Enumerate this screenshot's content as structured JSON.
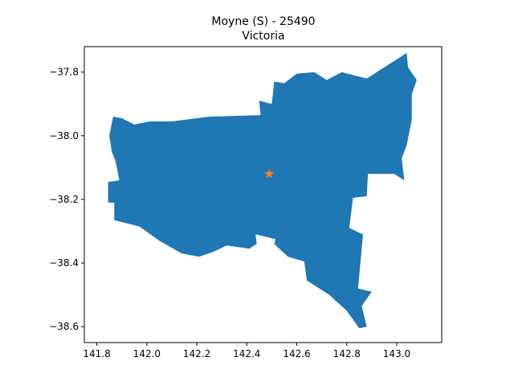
{
  "title": {
    "line1": "Moyne (S) - 25490",
    "line2": "Victoria"
  },
  "chart_data": {
    "type": "map",
    "title": "Moyne (S) - 25490\nVictoria",
    "xlabel": "",
    "ylabel": "",
    "xlim": [
      141.75,
      143.18
    ],
    "ylim": [
      -38.65,
      -37.72
    ],
    "grid": false,
    "x_ticks": [
      141.8,
      142.0,
      142.2,
      142.4,
      142.6,
      142.8,
      143.0
    ],
    "x_tick_labels": [
      "141.8",
      "142.0",
      "142.2",
      "142.4",
      "142.6",
      "142.8",
      "143.0"
    ],
    "y_ticks": [
      -37.8,
      -38.0,
      -38.2,
      -38.4,
      -38.6
    ],
    "y_tick_labels": [
      "−37.8",
      "−38.0",
      "−38.2",
      "−38.4",
      "−38.6"
    ],
    "region": {
      "name": "Moyne (S)",
      "fill_color": "#1f77b4",
      "outline": [
        [
          141.865,
          -37.94
        ],
        [
          141.9,
          -37.945
        ],
        [
          141.95,
          -37.965
        ],
        [
          142.01,
          -37.955
        ],
        [
          142.1,
          -37.955
        ],
        [
          142.25,
          -37.94
        ],
        [
          142.455,
          -37.935
        ],
        [
          142.45,
          -37.89
        ],
        [
          142.5,
          -37.9
        ],
        [
          142.51,
          -37.83
        ],
        [
          142.55,
          -37.835
        ],
        [
          142.6,
          -37.805
        ],
        [
          142.67,
          -37.8
        ],
        [
          142.72,
          -37.825
        ],
        [
          142.78,
          -37.8
        ],
        [
          142.88,
          -37.82
        ],
        [
          142.96,
          -37.78
        ],
        [
          142.99,
          -37.765
        ],
        [
          143.04,
          -37.74
        ],
        [
          143.045,
          -37.785
        ],
        [
          143.08,
          -37.825
        ],
        [
          143.06,
          -37.87
        ],
        [
          143.06,
          -37.95
        ],
        [
          143.04,
          -38.03
        ],
        [
          143.02,
          -38.07
        ],
        [
          143.03,
          -38.14
        ],
        [
          142.99,
          -38.12
        ],
        [
          142.93,
          -38.12
        ],
        [
          142.885,
          -38.12
        ],
        [
          142.88,
          -38.19
        ],
        [
          142.825,
          -38.195
        ],
        [
          142.81,
          -38.29
        ],
        [
          142.865,
          -38.31
        ],
        [
          142.845,
          -38.48
        ],
        [
          142.9,
          -38.49
        ],
        [
          142.86,
          -38.535
        ],
        [
          142.88,
          -38.6
        ],
        [
          142.85,
          -38.605
        ],
        [
          142.8,
          -38.55
        ],
        [
          142.73,
          -38.5
        ],
        [
          142.64,
          -38.455
        ],
        [
          142.63,
          -38.395
        ],
        [
          142.565,
          -38.38
        ],
        [
          142.53,
          -38.355
        ],
        [
          142.51,
          -38.34
        ],
        [
          142.515,
          -38.325
        ],
        [
          142.435,
          -38.31
        ],
        [
          142.44,
          -38.34
        ],
        [
          142.41,
          -38.355
        ],
        [
          142.32,
          -38.345
        ],
        [
          142.265,
          -38.365
        ],
        [
          142.21,
          -38.38
        ],
        [
          142.14,
          -38.37
        ],
        [
          142.05,
          -38.33
        ],
        [
          141.97,
          -38.285
        ],
        [
          141.87,
          -38.265
        ],
        [
          141.87,
          -38.21
        ],
        [
          141.845,
          -38.21
        ],
        [
          141.845,
          -38.145
        ],
        [
          141.89,
          -38.14
        ],
        [
          141.875,
          -38.08
        ],
        [
          141.86,
          -38.05
        ],
        [
          141.85,
          -38.0
        ],
        [
          141.865,
          -37.94
        ]
      ]
    },
    "marker": {
      "symbol": "star",
      "x": 142.49,
      "y": -38.12,
      "color": "#ff7f0e"
    }
  }
}
